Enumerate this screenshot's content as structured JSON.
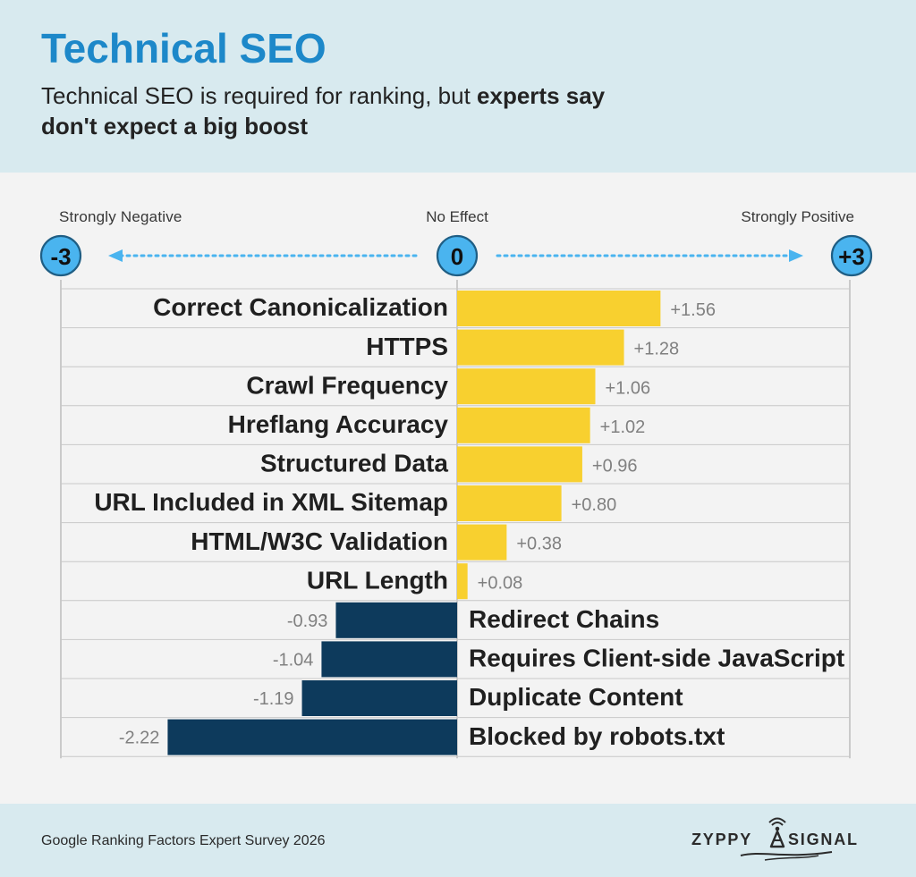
{
  "header": {
    "title": "Technical SEO",
    "subtitle_regular": "Technical SEO is required for ranking, but ",
    "subtitle_bold_1": "experts say",
    "subtitle_bold_2": "don't expect a big boost"
  },
  "scale": {
    "left_label": "Strongly Negative",
    "center_label": "No Effect",
    "right_label": "Strongly Positive",
    "left_value": "-3",
    "center_value": "0",
    "right_value": "+3"
  },
  "chart_data": {
    "type": "bar",
    "orientation": "horizontal",
    "categories": [
      "Correct Canonicalization",
      "HTTPS",
      "Crawl Frequency",
      "Hreflang Accuracy",
      "Structured Data",
      "URL Included in XML Sitemap",
      "HTML/W3C Validation",
      "URL Length",
      "Redirect Chains",
      "Requires Client-side JavaScript",
      "Duplicate Content",
      "Blocked by robots.txt"
    ],
    "values": [
      1.56,
      1.28,
      1.06,
      1.02,
      0.96,
      0.8,
      0.38,
      0.08,
      -0.93,
      -1.04,
      -1.19,
      -2.22
    ],
    "value_labels": [
      "+1.56",
      "+1.28",
      "+1.06",
      "+1.02",
      "+0.96",
      "+0.80",
      "+0.38",
      "+0.08",
      "-0.93",
      "-1.04",
      "-1.19",
      "-2.22"
    ],
    "xlim": [
      -3,
      3
    ],
    "grid": true,
    "colors": {
      "positive": "#f8d02f",
      "negative": "#0d3a5c",
      "zero_circle": "#4ab4ef",
      "arrow": "#4ab4ef",
      "value_label": "#808080",
      "grid": "#c8c8c8"
    }
  },
  "footer": {
    "source": "Google Ranking Factors Expert Survey 2026",
    "logo_left": "ZYPPY",
    "logo_right": "SIGNAL",
    "logo_icon": "signal-tower-icon"
  }
}
